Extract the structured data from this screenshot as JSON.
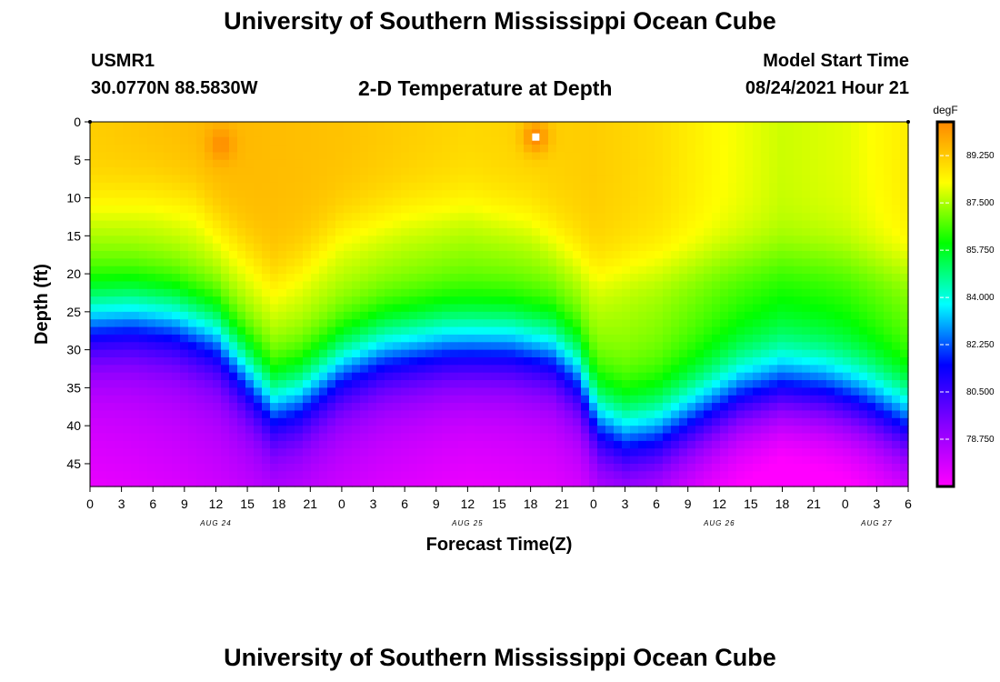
{
  "header": {
    "title": "University of Southern Mississippi Ocean Cube",
    "station_id": "USMR1",
    "station_coords": "30.0770N  88.5830W",
    "plot_title": "2-D Temperature at Depth",
    "model_label": "Model Start Time",
    "model_time": "08/24/2021 Hour 21"
  },
  "footer": {
    "title": "University of Southern Mississippi Ocean Cube"
  },
  "chart_data": {
    "type": "heatmap",
    "xlabel": "Forecast Time(Z)",
    "ylabel": "Depth (ft)",
    "ylim": [
      0,
      48
    ],
    "y_reversed": true,
    "y_ticks": [
      0,
      5,
      10,
      15,
      20,
      25,
      30,
      35,
      40,
      45
    ],
    "x_range_hours": [
      0,
      78
    ],
    "x_tick_labels": [
      "0",
      "3",
      "6",
      "9",
      "12",
      "15",
      "18",
      "21",
      "0",
      "3",
      "6",
      "9",
      "12",
      "15",
      "18",
      "21",
      "0",
      "3",
      "6",
      "9",
      "12",
      "15",
      "18",
      "21",
      "0",
      "3",
      "6"
    ],
    "date_labels": [
      {
        "label": "AUG 24",
        "hour": 12
      },
      {
        "label": "AUG 25",
        "hour": 36
      },
      {
        "label": "AUG 26",
        "hour": 60
      },
      {
        "label": "AUG 27",
        "hour": 75
      }
    ],
    "colorbar": {
      "unit": "degF",
      "range": [
        77,
        90.5
      ],
      "tick_labels": [
        "89.250",
        "87.500",
        "85.750",
        "84.000",
        "82.250",
        "80.500",
        "78.750"
      ],
      "colors": [
        "#ff00ff",
        "#8800ff",
        "#0000ff",
        "#00ffff",
        "#00ff00",
        "#ffff00",
        "#ff8800"
      ]
    },
    "surface_temp": [
      {
        "hour": 0,
        "value": 89.2
      },
      {
        "hour": 12,
        "value": 89.6
      },
      {
        "hour": 24,
        "value": 89.4
      },
      {
        "hour": 36,
        "value": 89.0
      },
      {
        "hour": 48,
        "value": 89.2
      },
      {
        "hour": 54,
        "value": 88.9
      },
      {
        "hour": 60,
        "value": 88.3
      },
      {
        "hour": 66,
        "value": 87.8
      },
      {
        "hour": 72,
        "value": 88.0
      },
      {
        "hour": 78,
        "value": 88.6
      }
    ],
    "thermocline_depth": [
      {
        "hour": 0,
        "value": 26
      },
      {
        "hour": 4,
        "value": 25.5
      },
      {
        "hour": 8,
        "value": 26
      },
      {
        "hour": 12,
        "value": 28
      },
      {
        "hour": 15,
        "value": 33
      },
      {
        "hour": 17.5,
        "value": 37
      },
      {
        "hour": 20,
        "value": 36
      },
      {
        "hour": 24,
        "value": 32
      },
      {
        "hour": 28,
        "value": 30
      },
      {
        "hour": 34,
        "value": 29
      },
      {
        "hour": 40,
        "value": 29
      },
      {
        "hour": 44,
        "value": 30
      },
      {
        "hour": 46.5,
        "value": 33
      },
      {
        "hour": 48.5,
        "value": 39
      },
      {
        "hour": 51,
        "value": 41
      },
      {
        "hour": 54,
        "value": 40.5
      },
      {
        "hour": 58,
        "value": 38
      },
      {
        "hour": 62,
        "value": 35.5
      },
      {
        "hour": 66,
        "value": 34.5
      },
      {
        "hour": 70,
        "value": 35
      },
      {
        "hour": 74,
        "value": 36.5
      },
      {
        "hour": 78,
        "value": 39
      }
    ],
    "mixed_layer_depth": [
      {
        "hour": 0,
        "value": 11
      },
      {
        "hour": 6,
        "value": 10
      },
      {
        "hour": 10,
        "value": 10.5
      },
      {
        "hour": 14,
        "value": 16
      },
      {
        "hour": 17.5,
        "value": 21
      },
      {
        "hour": 20,
        "value": 19
      },
      {
        "hour": 24,
        "value": 14
      },
      {
        "hour": 30,
        "value": 12
      },
      {
        "hour": 36,
        "value": 11.5
      },
      {
        "hour": 42,
        "value": 13
      },
      {
        "hour": 46,
        "value": 17
      },
      {
        "hour": 48.5,
        "value": 20
      },
      {
        "hour": 52,
        "value": 19
      },
      {
        "hour": 60,
        "value": 18
      },
      {
        "hour": 70,
        "value": 18
      },
      {
        "hour": 78,
        "value": 19
      }
    ],
    "hot_spots": [
      {
        "hour": 12.5,
        "depth": 3,
        "value": 90.4
      },
      {
        "hour": 42.5,
        "depth": 2,
        "value": 90.5
      }
    ]
  }
}
